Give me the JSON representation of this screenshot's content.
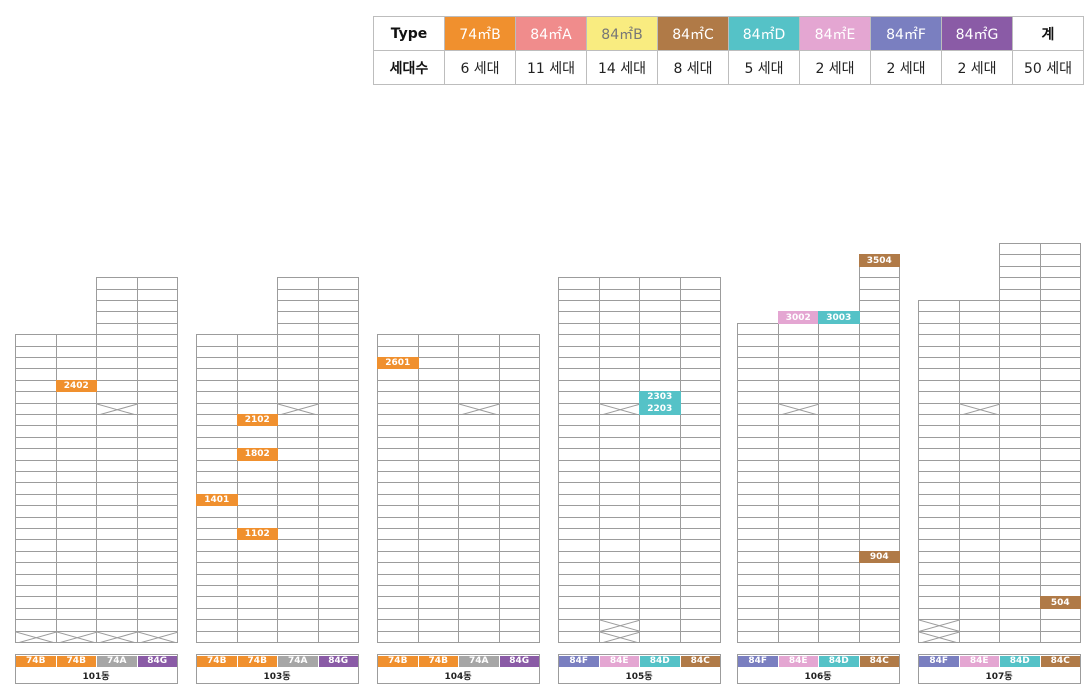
{
  "legend": {
    "header_type": "Type",
    "header_count": "세대수",
    "types": [
      {
        "key": "74B",
        "label": "74㎡B",
        "count": "6 세대",
        "color": "#F0902E"
      },
      {
        "key": "84A",
        "label": "84㎡A",
        "count": "11 세대",
        "color": "#F08C8C"
      },
      {
        "key": "84B",
        "label": "84㎡B",
        "count": "14 세대",
        "color": "#F9EC80"
      },
      {
        "key": "84C",
        "label": "84㎡C",
        "count": "8 세대",
        "color": "#B07A47"
      },
      {
        "key": "84D",
        "label": "84㎡D",
        "count": "5 세대",
        "color": "#55C2C7"
      },
      {
        "key": "84E",
        "label": "84㎡E",
        "count": "2 세대",
        "color": "#E4A6D2"
      },
      {
        "key": "84F",
        "label": "84㎡F",
        "count": "2 세대",
        "color": "#7A7FC0"
      },
      {
        "key": "84G",
        "label": "84㎡G",
        "count": "2 세대",
        "color": "#8A5BA6"
      }
    ],
    "total_label": "계",
    "total_count": "50 세대"
  },
  "colors": {
    "74A": "#A6A6A6"
  },
  "buildings": [
    {
      "name": "101동",
      "cols": [
        28,
        28,
        33,
        33
      ],
      "bottom": [
        "74B",
        "74B",
        "74A",
        "84G"
      ],
      "x_cells": [
        [
          0,
          2
        ],
        [
          1,
          2
        ],
        [
          2,
          2
        ],
        [
          3,
          2
        ],
        [
          2,
          22
        ]
      ],
      "units": [
        {
          "label": "2402",
          "col": 1,
          "floor": 24,
          "type": "74B"
        }
      ]
    },
    {
      "name": "103동",
      "cols": [
        28,
        28,
        33,
        33
      ],
      "bottom": [
        "74B",
        "74B",
        "74A",
        "84G"
      ],
      "x_cells": [
        [
          2,
          22
        ]
      ],
      "units": [
        {
          "label": "2102",
          "col": 1,
          "floor": 21,
          "type": "74B"
        },
        {
          "label": "1802",
          "col": 1,
          "floor": 18,
          "type": "74B"
        },
        {
          "label": "1401",
          "col": 0,
          "floor": 14,
          "type": "74B"
        },
        {
          "label": "1102",
          "col": 1,
          "floor": 11,
          "type": "74B"
        }
      ]
    },
    {
      "name": "104동",
      "cols": [
        28,
        28,
        28,
        28
      ],
      "bottom": [
        "74B",
        "74B",
        "74A",
        "84G"
      ],
      "x_cells": [
        [
          2,
          22
        ]
      ],
      "units": [
        {
          "label": "2601",
          "col": 0,
          "floor": 26,
          "type": "74B"
        }
      ]
    },
    {
      "name": "105동",
      "cols": [
        33,
        33,
        33,
        33
      ],
      "bottom": [
        "84F",
        "84E",
        "84D",
        "84C"
      ],
      "x_cells": [
        [
          1,
          2
        ],
        [
          1,
          3
        ],
        [
          1,
          22
        ]
      ],
      "units": [
        {
          "label": "2303",
          "col": 2,
          "floor": 23,
          "type": "84D"
        },
        {
          "label": "2203",
          "col": 2,
          "floor": 22,
          "type": "84D"
        }
      ]
    },
    {
      "name": "106동",
      "cols": [
        29,
        29,
        30,
        35
      ],
      "bottom": [
        "84F",
        "84E",
        "84D",
        "84C"
      ],
      "x_cells": [
        [
          1,
          22
        ]
      ],
      "units": [
        {
          "label": "3504",
          "col": 3,
          "floor": 35,
          "type": "84C"
        },
        {
          "label": "3002",
          "col": 1,
          "floor": 30,
          "type": "84E"
        },
        {
          "label": "3003",
          "col": 2,
          "floor": 30,
          "type": "84D"
        },
        {
          "label": "904",
          "col": 3,
          "floor": 9,
          "type": "84C"
        }
      ]
    },
    {
      "name": "107동",
      "cols": [
        31,
        31,
        36,
        36
      ],
      "bottom": [
        "84F",
        "84E",
        "84D",
        "84C"
      ],
      "x_cells": [
        [
          0,
          2
        ],
        [
          0,
          3
        ],
        [
          1,
          22
        ]
      ],
      "units": [
        {
          "label": "504",
          "col": 3,
          "floor": 5,
          "type": "84C"
        }
      ]
    }
  ]
}
